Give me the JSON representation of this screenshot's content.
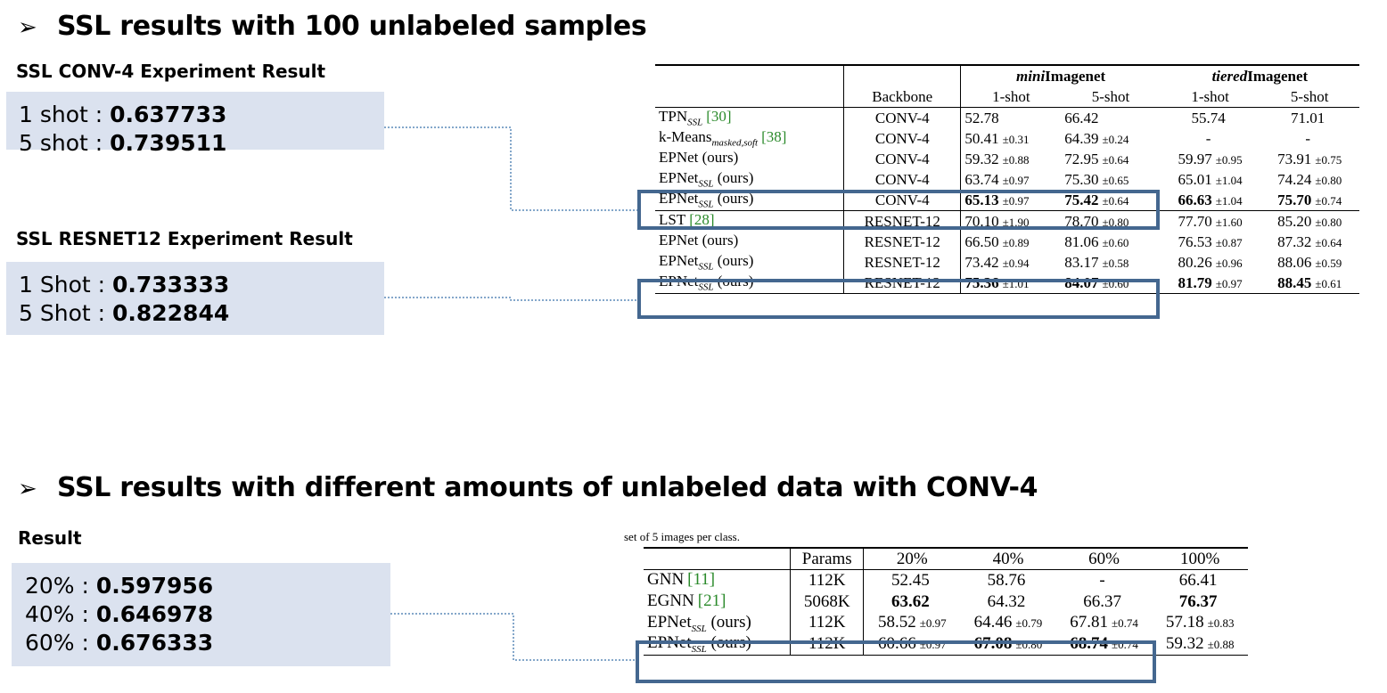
{
  "section1": {
    "title": "SSL results with 100 unlabeled samples",
    "conv4": {
      "subtitle": "SSL CONV-4 Experiment Result",
      "rows": [
        {
          "label": "1 shot : ",
          "value": "0.637733"
        },
        {
          "label": "5 shot : ",
          "value": "0.739511"
        }
      ]
    },
    "resnet12": {
      "subtitle": "SSL RESNET12 Experiment Result",
      "rows": [
        {
          "label": "1 Shot : ",
          "value": "0.733333"
        },
        {
          "label": "5 Shot : ",
          "value": "0.822844"
        }
      ]
    },
    "table": {
      "group_headers": [
        "miniImagenet",
        "tieredImagenet"
      ],
      "group_prefix_italic": [
        "mini",
        "tiered"
      ],
      "group_suffix": [
        "Imagenet",
        "Imagenet"
      ],
      "column_headers": [
        "Backbone",
        "1-shot",
        "5-shot",
        "1-shot",
        "5-shot"
      ],
      "rows": [
        {
          "method": "TPN",
          "sub": "SSL",
          "cite": "[30]",
          "suffix": "",
          "backbone": "CONV-4",
          "cells": [
            [
              "52.78",
              ""
            ],
            [
              "66.42",
              ""
            ],
            [
              "55.74",
              ""
            ],
            [
              "71.01",
              ""
            ]
          ]
        },
        {
          "method": "k-Means",
          "sub": "masked,soft",
          "cite": "[38]",
          "suffix": "",
          "backbone": "CONV-4",
          "cells": [
            [
              "50.41",
              "±0.31"
            ],
            [
              "64.39",
              "±0.24"
            ],
            [
              "-",
              ""
            ],
            [
              "-",
              ""
            ]
          ]
        },
        {
          "method": "EPNet (ours)",
          "sub": "",
          "cite": "",
          "suffix": "",
          "backbone": "CONV-4",
          "cells": [
            [
              "59.32",
              "±0.88"
            ],
            [
              "72.95",
              "±0.64"
            ],
            [
              "59.97",
              "±0.95"
            ],
            [
              "73.91",
              "±0.75"
            ]
          ]
        },
        {
          "method": "EPNet",
          "sub": "SSL",
          "cite": "",
          "suffix": " (ours)",
          "backbone": "CONV-4",
          "cells": [
            [
              "63.74",
              "±0.97"
            ],
            [
              "75.30",
              "±0.65"
            ],
            [
              "65.01",
              "±1.04"
            ],
            [
              "74.24",
              "±0.80"
            ]
          ]
        },
        {
          "method": "EPNet",
          "sub": "SSL",
          "cite": "",
          "suffix": " (ours)",
          "backbone": "CONV-4",
          "cells": [
            [
              "65.13",
              "±0.97"
            ],
            [
              "75.42",
              "±0.64"
            ],
            [
              "66.63",
              "±1.04"
            ],
            [
              "75.70",
              "±0.74"
            ]
          ]
        },
        {
          "method": "LST",
          "sub": "",
          "cite": "[28]",
          "suffix": "",
          "backbone": "RESNET-12",
          "cells": [
            [
              "70.10",
              "±1.90"
            ],
            [
              "78.70",
              "±0.80"
            ],
            [
              "77.70",
              "±1.60"
            ],
            [
              "85.20",
              "±0.80"
            ]
          ]
        },
        {
          "method": "EPNet (ours)",
          "sub": "",
          "cite": "",
          "suffix": "",
          "backbone": "RESNET-12",
          "cells": [
            [
              "66.50",
              "±0.89"
            ],
            [
              "81.06",
              "±0.60"
            ],
            [
              "76.53",
              "±0.87"
            ],
            [
              "87.32",
              "±0.64"
            ]
          ]
        },
        {
          "method": "EPNet",
          "sub": "SSL",
          "cite": "",
          "suffix": " (ours)",
          "backbone": "RESNET-12",
          "cells": [
            [
              "73.42",
              "±0.94"
            ],
            [
              "83.17",
              "±0.58"
            ],
            [
              "80.26",
              "±0.96"
            ],
            [
              "88.06",
              "±0.59"
            ]
          ]
        },
        {
          "method": "EPNet",
          "sub": "SSL",
          "cite": "",
          "suffix": " (ours)",
          "backbone": "RESNET-12",
          "cells": [
            [
              "75.36",
              "±1.01"
            ],
            [
              "84.07",
              "±0.60"
            ],
            [
              "81.79",
              "±0.97"
            ],
            [
              "88.45",
              "±0.61"
            ]
          ]
        }
      ]
    }
  },
  "section2": {
    "title": "SSL results with different amounts of unlabeled data with CONV-4",
    "subtitle": "Result",
    "rows": [
      {
        "label": "20% : ",
        "value": "0.597956"
      },
      {
        "label": "40% : ",
        "value": "0.646978"
      },
      {
        "label": "60% : ",
        "value": "0.676333"
      }
    ],
    "caption_fragment": "set of 5 images per class.",
    "table": {
      "column_headers": [
        "Params",
        "20%",
        "40%",
        "60%",
        "100%"
      ],
      "rows": [
        {
          "method": "GNN",
          "sub": "",
          "cite": "[11]",
          "suffix": "",
          "params": "112K",
          "cells": [
            [
              "52.45",
              ""
            ],
            [
              "58.76",
              ""
            ],
            [
              "-",
              ""
            ],
            [
              "66.41",
              ""
            ]
          ]
        },
        {
          "method": "EGNN",
          "sub": "",
          "cite": "[21]",
          "suffix": "",
          "params": "5068K",
          "cells": [
            [
              "63.62",
              ""
            ],
            [
              "64.32",
              ""
            ],
            [
              "66.37",
              ""
            ],
            [
              "76.37",
              ""
            ]
          ]
        },
        {
          "method": "EPNet",
          "sub": "SSL",
          "cite": "",
          "suffix": " (ours)",
          "params": "112K",
          "cells": [
            [
              "58.52",
              "±0.97"
            ],
            [
              "64.46",
              "±0.79"
            ],
            [
              "67.81",
              "±0.74"
            ],
            [
              "57.18",
              "±0.83"
            ]
          ]
        },
        {
          "method": "EPNet",
          "sub": "SSL",
          "cite": "",
          "suffix": " (ours)",
          "params": "112K",
          "cells": [
            [
              "60.66",
              "±0.97"
            ],
            [
              "67.08",
              "±0.80"
            ],
            [
              "68.74",
              "±0.74"
            ],
            [
              "59.32",
              "±0.88"
            ]
          ]
        }
      ]
    }
  },
  "colors": {
    "highlight_border": "#44678f",
    "result_box_bg": "#dbe2ef",
    "connector": "#5b8ab8",
    "citation": "#2a8a2a"
  }
}
